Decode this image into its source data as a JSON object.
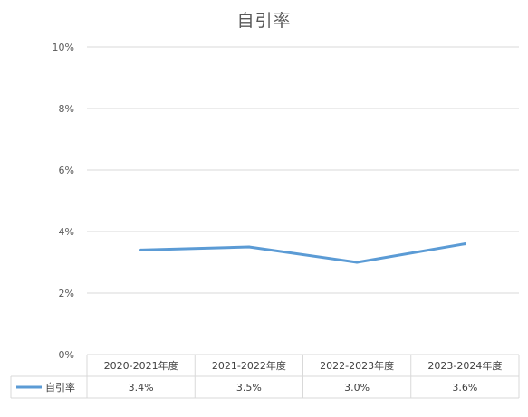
{
  "chart_data": {
    "type": "line",
    "title": "自引率",
    "categories": [
      "2020-2021年度",
      "2021-2022年度",
      "2022-2023年度",
      "2023-2024年度"
    ],
    "series": [
      {
        "name": "自引率",
        "values": [
          3.4,
          3.5,
          3.0,
          3.6
        ],
        "labels": [
          "3.4%",
          "3.5%",
          "3.0%",
          "3.6%"
        ]
      }
    ],
    "ylim": [
      0,
      10
    ],
    "yticks": [
      0,
      2,
      4,
      6,
      8,
      10
    ],
    "ytick_labels": [
      "0%",
      "2%",
      "4%",
      "6%",
      "8%",
      "10%"
    ],
    "grid": true,
    "data_table": true,
    "line_color": "#5B9BD5",
    "grid_color": "#D9D9D9"
  }
}
